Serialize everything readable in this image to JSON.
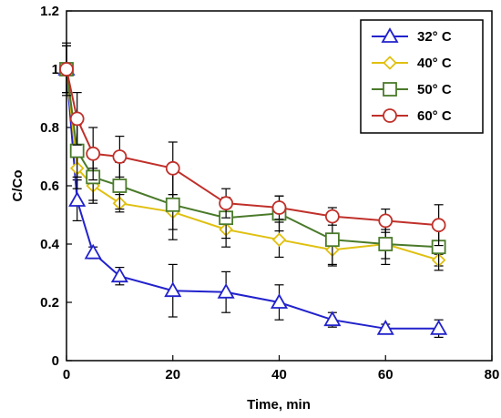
{
  "chart_data": {
    "type": "line",
    "title": "",
    "xlabel": "Time, min",
    "ylabel": "C/Co",
    "xlim": [
      0,
      80
    ],
    "ylim": [
      0,
      1.2
    ],
    "xticks": [
      0,
      20,
      40,
      60,
      80
    ],
    "yticks": [
      0,
      0.2,
      0.4,
      0.6,
      0.8,
      1,
      1.2
    ],
    "xtick_labels": [
      "0",
      "20",
      "40",
      "60",
      "80"
    ],
    "ytick_labels": [
      "0",
      "0.2",
      "0.4",
      "0.6",
      "0.8",
      "1",
      "1.2"
    ],
    "grid": false,
    "legend_position": "top-right",
    "series": [
      {
        "name": "32° C",
        "color": "#2222cc",
        "marker": "triangle",
        "x": [
          0,
          2,
          5,
          10,
          20,
          30,
          40,
          50,
          60,
          70
        ],
        "y": [
          1.0,
          0.55,
          0.37,
          0.29,
          0.24,
          0.235,
          0.2,
          0.14,
          0.11,
          0.11
        ],
        "err": [
          0.08,
          0.07,
          0.02,
          0.03,
          0.09,
          0.07,
          0.06,
          0.025,
          0.015,
          0.03
        ]
      },
      {
        "name": "40° C",
        "color": "#e0c010",
        "marker": "diamond",
        "x": [
          0,
          2,
          5,
          10,
          20,
          30,
          40,
          50,
          60,
          70
        ],
        "y": [
          1.0,
          0.66,
          0.6,
          0.54,
          0.51,
          0.45,
          0.415,
          0.38,
          0.4,
          0.345
        ],
        "err": [
          0.08,
          0.07,
          0.06,
          0.03,
          0.06,
          0.06,
          0.06,
          0.05,
          0.05,
          0.02
        ]
      },
      {
        "name": "50° C",
        "color": "#4a7a2a",
        "marker": "square",
        "x": [
          0,
          2,
          5,
          10,
          20,
          30,
          40,
          50,
          60,
          70
        ],
        "y": [
          1.0,
          0.72,
          0.63,
          0.6,
          0.535,
          0.49,
          0.505,
          0.415,
          0.4,
          0.39
        ],
        "err": [
          0.08,
          0.09,
          0.08,
          0.08,
          0.12,
          0.07,
          0.06,
          0.09,
          0.07,
          0.08
        ]
      },
      {
        "name": "60° C",
        "color": "#c0302a",
        "marker": "circle",
        "x": [
          0,
          2,
          5,
          10,
          20,
          30,
          40,
          50,
          60,
          70
        ],
        "y": [
          1.0,
          0.83,
          0.71,
          0.7,
          0.66,
          0.54,
          0.525,
          0.495,
          0.48,
          0.465
        ],
        "err": [
          0.09,
          0.09,
          0.09,
          0.07,
          0.09,
          0.05,
          0.04,
          0.03,
          0.04,
          0.07
        ]
      }
    ]
  }
}
